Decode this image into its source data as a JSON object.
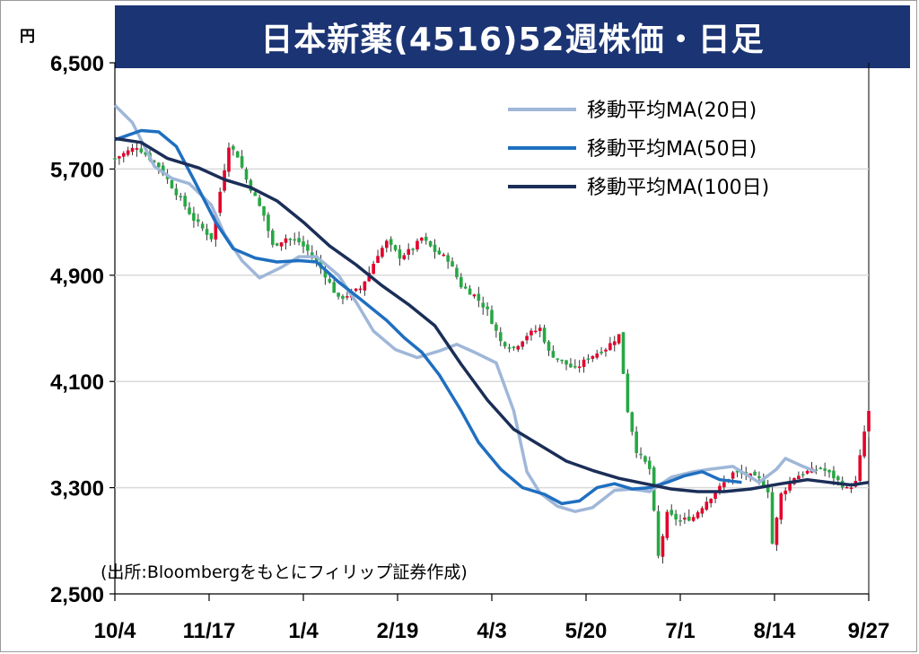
{
  "chart_data": {
    "type": "candlestick",
    "title": "日本新薬(4516)52週株価・日足",
    "unit_label": "円",
    "source_note": "(出所:Bloombergをもとにフィリップ証券作成)",
    "ylim": [
      2500,
      6500
    ],
    "yticks": [
      "6,500",
      "5,700",
      "4,900",
      "4,100",
      "3,300",
      "2,500"
    ],
    "xticks": [
      "10/4",
      "11/17",
      "1/4",
      "2/19",
      "4/3",
      "5/20",
      "7/1",
      "8/14",
      "9/27"
    ],
    "colors": {
      "up": "#e4002b",
      "down": "#27a844",
      "ma20": "#9fb7d8",
      "ma50": "#1f6fc0",
      "ma100": "#1b2e58",
      "title_bg": "#1b3474"
    },
    "legend": [
      {
        "key": "ma20",
        "label": "移動平均MA(20日)"
      },
      {
        "key": "ma50",
        "label": "移動平均MA(50日)"
      },
      {
        "key": "ma100",
        "label": "移動平均MA(100日)"
      }
    ],
    "price_path": [
      [
        0,
        5780
      ],
      [
        5,
        5870
      ],
      [
        10,
        5720
      ],
      [
        14,
        5520
      ],
      [
        18,
        5320
      ],
      [
        20,
        5250
      ],
      [
        22,
        5180
      ],
      [
        26,
        5880
      ],
      [
        28,
        5800
      ],
      [
        30,
        5620
      ],
      [
        34,
        5350
      ],
      [
        36,
        5120
      ],
      [
        39,
        5180
      ],
      [
        42,
        5150
      ],
      [
        45,
        5050
      ],
      [
        48,
        4900
      ],
      [
        51,
        4720
      ],
      [
        53,
        4750
      ],
      [
        56,
        4800
      ],
      [
        58,
        4920
      ],
      [
        60,
        5060
      ],
      [
        62,
        5150
      ],
      [
        65,
        5040
      ],
      [
        68,
        5100
      ],
      [
        70,
        5180
      ],
      [
        73,
        5080
      ],
      [
        76,
        5020
      ],
      [
        79,
        4820
      ],
      [
        82,
        4750
      ],
      [
        85,
        4630
      ],
      [
        88,
        4400
      ],
      [
        91,
        4350
      ],
      [
        94,
        4450
      ],
      [
        97,
        4500
      ],
      [
        99,
        4320
      ],
      [
        102,
        4250
      ],
      [
        105,
        4190
      ],
      [
        108,
        4280
      ],
      [
        112,
        4350
      ],
      [
        115,
        4450
      ],
      [
        117,
        3880
      ],
      [
        119,
        3580
      ],
      [
        122,
        3440
      ],
      [
        124,
        2780
      ],
      [
        126,
        3100
      ],
      [
        129,
        3050
      ],
      [
        132,
        3080
      ],
      [
        135,
        3200
      ],
      [
        138,
        3300
      ],
      [
        141,
        3410
      ],
      [
        144,
        3400
      ],
      [
        147,
        3360
      ],
      [
        149,
        3280
      ],
      [
        150,
        2880
      ],
      [
        152,
        3250
      ],
      [
        155,
        3380
      ],
      [
        158,
        3420
      ],
      [
        161,
        3450
      ],
      [
        164,
        3380
      ],
      [
        167,
        3290
      ],
      [
        169,
        3340
      ],
      [
        171,
        3720
      ],
      [
        172,
        3870
      ]
    ],
    "ma20": [
      [
        0,
        6180
      ],
      [
        4,
        6050
      ],
      [
        9,
        5720
      ],
      [
        13,
        5630
      ],
      [
        17,
        5590
      ],
      [
        22,
        5430
      ],
      [
        25,
        5210
      ],
      [
        29,
        5010
      ],
      [
        33,
        4880
      ],
      [
        38,
        4960
      ],
      [
        42,
        5040
      ],
      [
        46,
        5040
      ],
      [
        51,
        4900
      ],
      [
        55,
        4700
      ],
      [
        59,
        4480
      ],
      [
        64,
        4340
      ],
      [
        69,
        4280
      ],
      [
        74,
        4330
      ],
      [
        78,
        4380
      ],
      [
        82,
        4320
      ],
      [
        87,
        4240
      ],
      [
        91,
        3880
      ],
      [
        94,
        3420
      ],
      [
        97,
        3260
      ],
      [
        101,
        3160
      ],
      [
        105,
        3120
      ],
      [
        109,
        3150
      ],
      [
        114,
        3280
      ],
      [
        118,
        3290
      ],
      [
        122,
        3270
      ],
      [
        127,
        3380
      ],
      [
        132,
        3420
      ],
      [
        136,
        3440
      ],
      [
        141,
        3460
      ],
      [
        147,
        3340
      ],
      [
        151,
        3440
      ],
      [
        153,
        3520
      ],
      [
        157,
        3460
      ],
      [
        160,
        3420
      ]
    ],
    "ma50": [
      [
        0,
        5920
      ],
      [
        6,
        5990
      ],
      [
        10,
        5980
      ],
      [
        14,
        5870
      ],
      [
        18,
        5620
      ],
      [
        23,
        5300
      ],
      [
        27,
        5100
      ],
      [
        32,
        5030
      ],
      [
        37,
        5000
      ],
      [
        42,
        5010
      ],
      [
        46,
        5000
      ],
      [
        51,
        4850
      ],
      [
        56,
        4720
      ],
      [
        62,
        4560
      ],
      [
        66,
        4430
      ],
      [
        70,
        4320
      ],
      [
        74,
        4150
      ],
      [
        79,
        3880
      ],
      [
        83,
        3640
      ],
      [
        88,
        3440
      ],
      [
        93,
        3300
      ],
      [
        98,
        3250
      ],
      [
        102,
        3180
      ],
      [
        106,
        3200
      ],
      [
        110,
        3300
      ],
      [
        114,
        3330
      ],
      [
        118,
        3290
      ],
      [
        122,
        3300
      ],
      [
        126,
        3340
      ],
      [
        130,
        3390
      ],
      [
        134,
        3420
      ],
      [
        138,
        3360
      ],
      [
        143,
        3340
      ]
    ],
    "ma100": [
      [
        0,
        5930
      ],
      [
        6,
        5900
      ],
      [
        12,
        5780
      ],
      [
        19,
        5710
      ],
      [
        25,
        5620
      ],
      [
        31,
        5560
      ],
      [
        37,
        5460
      ],
      [
        43,
        5300
      ],
      [
        49,
        5120
      ],
      [
        55,
        4980
      ],
      [
        61,
        4820
      ],
      [
        67,
        4680
      ],
      [
        73,
        4520
      ],
      [
        79,
        4230
      ],
      [
        85,
        3960
      ],
      [
        91,
        3740
      ],
      [
        97,
        3620
      ],
      [
        103,
        3500
      ],
      [
        109,
        3430
      ],
      [
        115,
        3370
      ],
      [
        121,
        3330
      ],
      [
        127,
        3290
      ],
      [
        133,
        3270
      ],
      [
        139,
        3270
      ],
      [
        145,
        3290
      ],
      [
        152,
        3330
      ],
      [
        158,
        3360
      ],
      [
        163,
        3340
      ],
      [
        168,
        3320
      ],
      [
        172,
        3340
      ]
    ]
  }
}
